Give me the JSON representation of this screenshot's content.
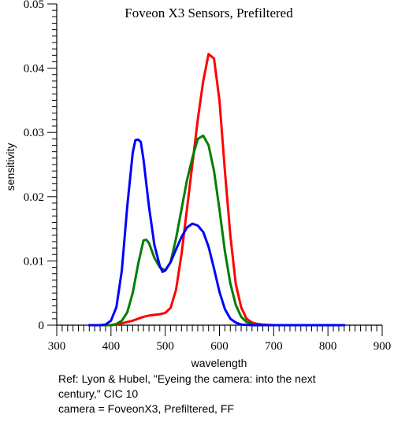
{
  "chart_data": {
    "type": "line",
    "title": "Foveon X3 Sensors, Prefiltered",
    "xlabel": "wavelength",
    "ylabel": "sensitivity",
    "xlim": [
      300,
      900
    ],
    "ylim": [
      0,
      0.05
    ],
    "x_ticks": [
      300,
      400,
      500,
      600,
      700,
      800,
      900
    ],
    "x_tick_labels": [
      "300",
      "400",
      "500",
      "600",
      "700",
      "800",
      "900"
    ],
    "y_ticks": [
      0,
      0.01,
      0.02,
      0.03,
      0.04,
      0.05
    ],
    "y_tick_labels": [
      "0",
      "0.01",
      "0.02",
      "0.03",
      "0.04",
      "0.05"
    ],
    "grid": false,
    "series": [
      {
        "color": "#ff0000",
        "x": [
          360,
          380,
          400,
          410,
          420,
          430,
          440,
          450,
          460,
          470,
          480,
          490,
          500,
          510,
          520,
          530,
          540,
          550,
          560,
          570,
          580,
          590,
          600,
          610,
          620,
          630,
          640,
          650,
          660,
          670,
          680,
          700,
          750,
          800,
          830
        ],
        "y": [
          0,
          0,
          0,
          0.0001,
          0.0003,
          0.0005,
          0.0007,
          0.001,
          0.0013,
          0.0015,
          0.0016,
          0.0017,
          0.0019,
          0.0027,
          0.0055,
          0.011,
          0.018,
          0.025,
          0.032,
          0.038,
          0.0422,
          0.0415,
          0.035,
          0.024,
          0.014,
          0.0065,
          0.0028,
          0.001,
          0.0004,
          0.0002,
          0.0001,
          0,
          0,
          0,
          0
        ]
      },
      {
        "color": "#007f00",
        "x": [
          360,
          380,
          400,
          410,
          420,
          430,
          440,
          450,
          460,
          465,
          470,
          480,
          490,
          500,
          510,
          520,
          530,
          540,
          550,
          560,
          570,
          580,
          590,
          600,
          610,
          620,
          630,
          640,
          650,
          660,
          680,
          700,
          750,
          800,
          830
        ],
        "y": [
          0,
          0,
          0,
          0.0002,
          0.0007,
          0.002,
          0.005,
          0.0095,
          0.0132,
          0.0133,
          0.0128,
          0.0105,
          0.009,
          0.0085,
          0.0098,
          0.0135,
          0.018,
          0.0225,
          0.026,
          0.029,
          0.0295,
          0.028,
          0.024,
          0.018,
          0.0115,
          0.0065,
          0.0032,
          0.0013,
          0.0005,
          0.0002,
          0,
          0,
          0,
          0,
          0
        ]
      },
      {
        "color": "#0000ff",
        "x": [
          360,
          380,
          390,
          400,
          410,
          420,
          430,
          440,
          445,
          450,
          455,
          460,
          470,
          480,
          490,
          495,
          500,
          510,
          520,
          530,
          540,
          550,
          560,
          570,
          580,
          590,
          600,
          610,
          620,
          630,
          640,
          660,
          700,
          750,
          800,
          830
        ],
        "y": [
          0,
          0,
          0.0001,
          0.0007,
          0.0028,
          0.0085,
          0.0185,
          0.0268,
          0.0288,
          0.0289,
          0.0285,
          0.0258,
          0.0185,
          0.0125,
          0.0092,
          0.0083,
          0.0085,
          0.0098,
          0.0118,
          0.0137,
          0.0152,
          0.0158,
          0.0155,
          0.0145,
          0.0122,
          0.0088,
          0.0052,
          0.0025,
          0.001,
          0.0004,
          0.0001,
          0,
          0,
          0,
          0,
          0
        ]
      }
    ]
  },
  "caption": {
    "line1": "Ref: Lyon & Hubel, \"Eyeing the camera: into the next",
    "line2": "century,\" CIC 10",
    "line3": "camera = FoveonX3, Prefiltered, FF"
  }
}
